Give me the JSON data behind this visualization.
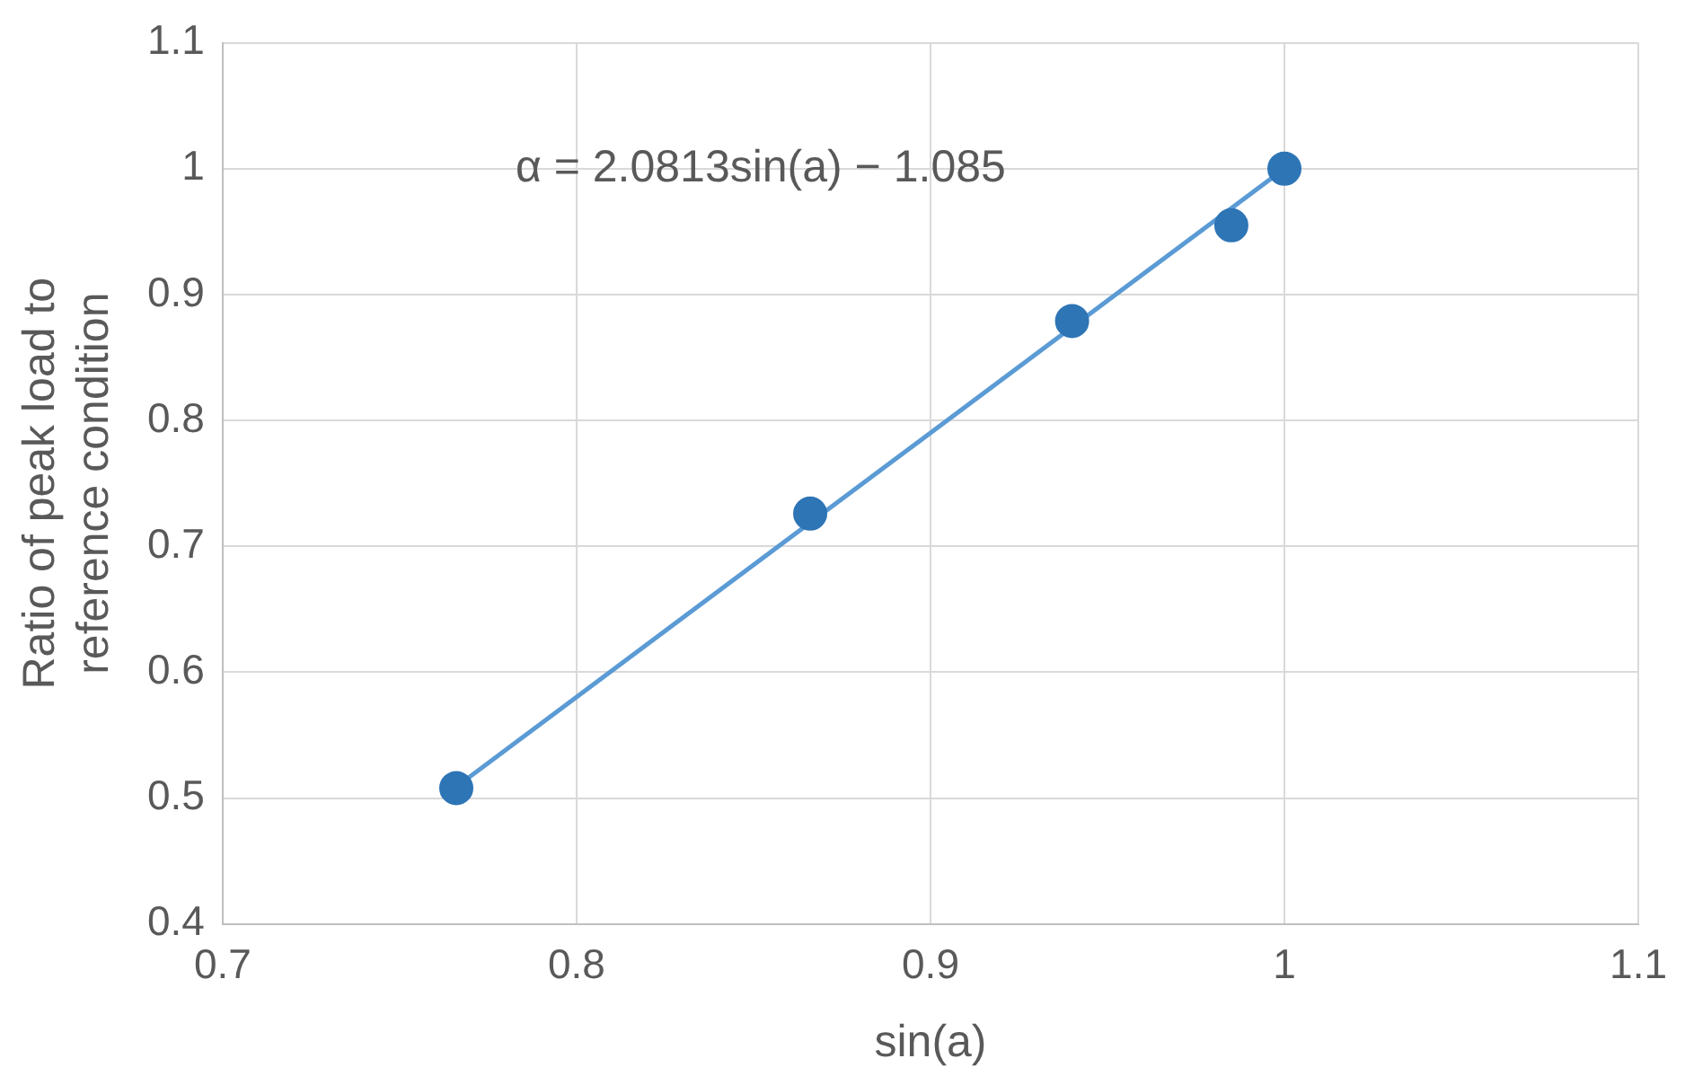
{
  "chart_data": {
    "type": "scatter",
    "xlabel": "sin(a)",
    "ylabel": "Ratio of peak load to reference condition",
    "annotations": [
      "α = 2.0813sin(a) − 1.085"
    ],
    "series": [
      {
        "type": "line",
        "color": "#5b9bd5",
        "x": [
          0.766,
          1.0
        ],
        "values": [
          0.509,
          1.0
        ]
      },
      {
        "type": "scatter",
        "marker": "circle",
        "color": "#2e75b6",
        "x": [
          0.766,
          0.866,
          0.94,
          0.985,
          1.0
        ],
        "values": [
          0.508,
          0.726,
          0.879,
          0.955,
          1.0
        ]
      }
    ],
    "grid": true,
    "xlim": [
      0.7,
      1.1
    ],
    "xticks": [
      0.7,
      0.8,
      0.9,
      1,
      1.1
    ],
    "ylim": [
      0.4,
      1.1
    ],
    "yticks": [
      0.4,
      0.5,
      0.6,
      0.7,
      0.8,
      0.9,
      1,
      1.1
    ]
  }
}
